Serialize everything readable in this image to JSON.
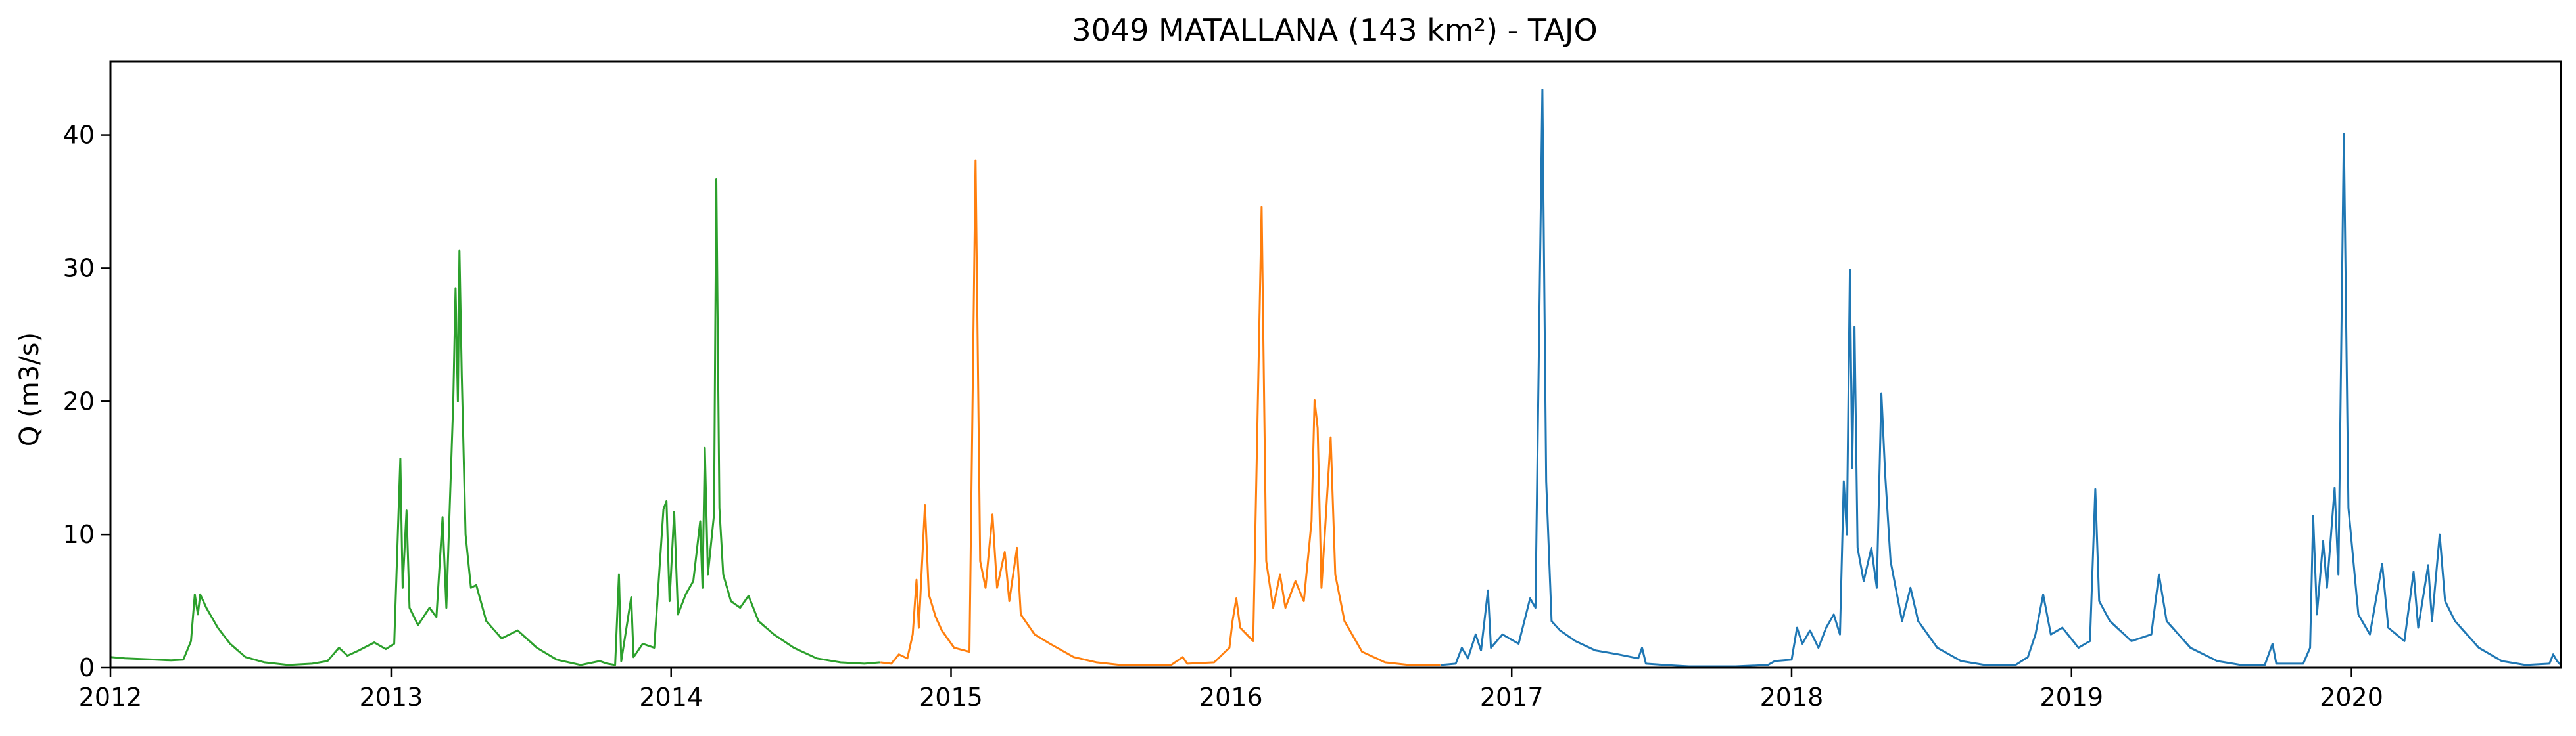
{
  "chart_data": {
    "type": "line",
    "title": "3049 MATALLANA (143 km²) - TAJO",
    "xlabel": "",
    "ylabel": "Q (m3/s)",
    "xlim": [
      "2012-01-01",
      "2020-09-30"
    ],
    "ylim": [
      0,
      45.5
    ],
    "x_ticks": [
      "2012",
      "2013",
      "2014",
      "2015",
      "2016",
      "2017",
      "2018",
      "2019",
      "2020"
    ],
    "y_ticks": [
      "0",
      "10",
      "20",
      "30",
      "40"
    ],
    "grid": false,
    "legend": "none",
    "series": [
      {
        "color": "#2ca02c",
        "points": [
          [
            "2012-01-01",
            0.8
          ],
          [
            "2012-01-20",
            0.7
          ],
          [
            "2012-02-10",
            0.65
          ],
          [
            "2012-03-01",
            0.6
          ],
          [
            "2012-03-20",
            0.55
          ],
          [
            "2012-04-05",
            0.6
          ],
          [
            "2012-04-15",
            2.0
          ],
          [
            "2012-04-20",
            5.5
          ],
          [
            "2012-04-24",
            4.0
          ],
          [
            "2012-04-27",
            5.5
          ],
          [
            "2012-05-05",
            4.5
          ],
          [
            "2012-05-20",
            3.0
          ],
          [
            "2012-06-05",
            1.8
          ],
          [
            "2012-06-25",
            0.8
          ],
          [
            "2012-07-20",
            0.4
          ],
          [
            "2012-08-20",
            0.2
          ],
          [
            "2012-09-20",
            0.3
          ],
          [
            "2012-10-10",
            0.5
          ],
          [
            "2012-10-25",
            1.5
          ],
          [
            "2012-11-05",
            0.9
          ],
          [
            "2012-11-20",
            1.3
          ],
          [
            "2012-12-10",
            1.9
          ],
          [
            "2012-12-25",
            1.4
          ],
          [
            "2013-01-05",
            1.8
          ],
          [
            "2013-01-13",
            15.7
          ],
          [
            "2013-01-16",
            6.0
          ],
          [
            "2013-01-21",
            11.8
          ],
          [
            "2013-01-25",
            4.5
          ],
          [
            "2013-02-05",
            3.2
          ],
          [
            "2013-02-20",
            4.5
          ],
          [
            "2013-03-01",
            3.8
          ],
          [
            "2013-03-09",
            11.3
          ],
          [
            "2013-03-14",
            4.5
          ],
          [
            "2013-03-23",
            20.0
          ],
          [
            "2013-03-26",
            28.5
          ],
          [
            "2013-03-29",
            20.0
          ],
          [
            "2013-03-31",
            31.3
          ],
          [
            "2013-04-03",
            22.0
          ],
          [
            "2013-04-08",
            10.0
          ],
          [
            "2013-04-15",
            6.0
          ],
          [
            "2013-04-22",
            6.2
          ],
          [
            "2013-05-05",
            3.5
          ],
          [
            "2013-05-25",
            2.2
          ],
          [
            "2013-06-15",
            2.8
          ],
          [
            "2013-07-10",
            1.5
          ],
          [
            "2013-08-05",
            0.6
          ],
          [
            "2013-09-05",
            0.2
          ],
          [
            "2013-09-30",
            0.5
          ],
          [
            "2013-10-10",
            0.3
          ],
          [
            "2013-10-20",
            0.2
          ],
          [
            "2013-10-25",
            7.0
          ],
          [
            "2013-10-28",
            0.5
          ],
          [
            "2013-11-10",
            5.3
          ],
          [
            "2013-11-13",
            0.8
          ],
          [
            "2013-11-25",
            1.8
          ],
          [
            "2013-12-10",
            1.5
          ],
          [
            "2013-12-22",
            11.9
          ],
          [
            "2013-12-26",
            12.5
          ],
          [
            "2013-12-30",
            5.0
          ],
          [
            "2014-01-05",
            11.7
          ],
          [
            "2014-01-10",
            4.0
          ],
          [
            "2014-01-20",
            5.5
          ],
          [
            "2014-01-30",
            6.5
          ],
          [
            "2014-02-08",
            11.0
          ],
          [
            "2014-02-11",
            6.0
          ],
          [
            "2014-02-14",
            16.5
          ],
          [
            "2014-02-18",
            7.0
          ],
          [
            "2014-02-26",
            11.5
          ],
          [
            "2014-03-01",
            36.7
          ],
          [
            "2014-03-05",
            12.0
          ],
          [
            "2014-03-10",
            7.0
          ],
          [
            "2014-03-20",
            5.0
          ],
          [
            "2014-04-01",
            4.5
          ],
          [
            "2014-04-12",
            5.4
          ],
          [
            "2014-04-25",
            3.5
          ],
          [
            "2014-05-15",
            2.5
          ],
          [
            "2014-06-10",
            1.5
          ],
          [
            "2014-07-10",
            0.7
          ],
          [
            "2014-08-10",
            0.4
          ],
          [
            "2014-09-10",
            0.3
          ],
          [
            "2014-09-30",
            0.4
          ]
        ]
      },
      {
        "color": "#ff7f0e",
        "points": [
          [
            "2014-10-01",
            0.4
          ],
          [
            "2014-10-15",
            0.3
          ],
          [
            "2014-10-25",
            1.0
          ],
          [
            "2014-11-05",
            0.7
          ],
          [
            "2014-11-12",
            2.5
          ],
          [
            "2014-11-17",
            6.6
          ],
          [
            "2014-11-20",
            3.0
          ],
          [
            "2014-11-28",
            12.2
          ],
          [
            "2014-12-03",
            5.5
          ],
          [
            "2014-12-12",
            3.8
          ],
          [
            "2014-12-20",
            2.8
          ],
          [
            "2015-01-05",
            1.5
          ],
          [
            "2015-01-25",
            1.2
          ],
          [
            "2015-02-02",
            38.1
          ],
          [
            "2015-02-08",
            8.0
          ],
          [
            "2015-02-15",
            6.0
          ],
          [
            "2015-02-24",
            11.5
          ],
          [
            "2015-03-02",
            6.0
          ],
          [
            "2015-03-12",
            8.7
          ],
          [
            "2015-03-18",
            5.0
          ],
          [
            "2015-03-28",
            9.0
          ],
          [
            "2015-04-02",
            4.0
          ],
          [
            "2015-04-20",
            2.5
          ],
          [
            "2015-05-10",
            1.8
          ],
          [
            "2015-06-10",
            0.8
          ],
          [
            "2015-07-10",
            0.4
          ],
          [
            "2015-08-10",
            0.2
          ],
          [
            "2015-09-10",
            0.2
          ],
          [
            "2015-10-15",
            0.2
          ],
          [
            "2015-10-30",
            0.8
          ],
          [
            "2015-11-05",
            0.3
          ],
          [
            "2015-12-10",
            0.4
          ],
          [
            "2015-12-30",
            1.5
          ],
          [
            "2016-01-03",
            3.5
          ],
          [
            "2016-01-08",
            5.2
          ],
          [
            "2016-01-13",
            3.0
          ],
          [
            "2016-01-30",
            2.0
          ],
          [
            "2016-02-10",
            34.6
          ],
          [
            "2016-02-16",
            8.0
          ],
          [
            "2016-02-25",
            4.5
          ],
          [
            "2016-03-05",
            7.0
          ],
          [
            "2016-03-12",
            4.5
          ],
          [
            "2016-03-25",
            6.5
          ],
          [
            "2016-04-05",
            5.0
          ],
          [
            "2016-04-15",
            11.0
          ],
          [
            "2016-04-19",
            20.1
          ],
          [
            "2016-04-23",
            18.0
          ],
          [
            "2016-04-28",
            6.0
          ],
          [
            "2016-05-10",
            17.3
          ],
          [
            "2016-05-16",
            7.0
          ],
          [
            "2016-05-28",
            3.5
          ],
          [
            "2016-06-20",
            1.2
          ],
          [
            "2016-07-20",
            0.4
          ],
          [
            "2016-08-20",
            0.2
          ],
          [
            "2016-09-30",
            0.2
          ]
        ]
      },
      {
        "color": "#1f77b4",
        "points": [
          [
            "2016-10-01",
            0.2
          ],
          [
            "2016-10-20",
            0.3
          ],
          [
            "2016-10-28",
            1.5
          ],
          [
            "2016-11-05",
            0.7
          ],
          [
            "2016-11-15",
            2.5
          ],
          [
            "2016-11-22",
            1.3
          ],
          [
            "2016-12-01",
            5.8
          ],
          [
            "2016-12-05",
            1.5
          ],
          [
            "2016-12-20",
            2.5
          ],
          [
            "2017-01-10",
            1.8
          ],
          [
            "2017-01-25",
            5.2
          ],
          [
            "2017-02-01",
            4.5
          ],
          [
            "2017-02-10",
            43.4
          ],
          [
            "2017-02-15",
            14.0
          ],
          [
            "2017-02-22",
            3.5
          ],
          [
            "2017-03-05",
            2.8
          ],
          [
            "2017-03-25",
            2.0
          ],
          [
            "2017-04-20",
            1.3
          ],
          [
            "2017-05-20",
            1.0
          ],
          [
            "2017-06-15",
            0.7
          ],
          [
            "2017-06-20",
            1.5
          ],
          [
            "2017-06-25",
            0.3
          ],
          [
            "2017-07-20",
            0.2
          ],
          [
            "2017-08-20",
            0.1
          ],
          [
            "2017-10-20",
            0.1
          ],
          [
            "2017-12-01",
            0.2
          ],
          [
            "2017-12-10",
            0.5
          ],
          [
            "2018-01-01",
            0.6
          ],
          [
            "2018-01-08",
            3.0
          ],
          [
            "2018-01-15",
            1.8
          ],
          [
            "2018-01-25",
            2.8
          ],
          [
            "2018-02-05",
            1.5
          ],
          [
            "2018-02-15",
            3.0
          ],
          [
            "2018-02-25",
            4.0
          ],
          [
            "2018-03-05",
            2.5
          ],
          [
            "2018-03-10",
            14.0
          ],
          [
            "2018-03-14",
            10.0
          ],
          [
            "2018-03-18",
            29.9
          ],
          [
            "2018-03-21",
            15.0
          ],
          [
            "2018-03-24",
            25.6
          ],
          [
            "2018-03-28",
            9.0
          ],
          [
            "2018-04-05",
            6.5
          ],
          [
            "2018-04-15",
            9.0
          ],
          [
            "2018-04-22",
            6.0
          ],
          [
            "2018-04-28",
            20.6
          ],
          [
            "2018-05-03",
            14.5
          ],
          [
            "2018-05-10",
            8.0
          ],
          [
            "2018-05-25",
            3.5
          ],
          [
            "2018-06-05",
            6.0
          ],
          [
            "2018-06-15",
            3.5
          ],
          [
            "2018-07-10",
            1.5
          ],
          [
            "2018-08-10",
            0.5
          ],
          [
            "2018-09-10",
            0.2
          ],
          [
            "2018-10-20",
            0.2
          ],
          [
            "2018-11-05",
            0.8
          ],
          [
            "2018-11-15",
            2.5
          ],
          [
            "2018-11-25",
            5.5
          ],
          [
            "2018-12-05",
            2.5
          ],
          [
            "2018-12-20",
            3.0
          ],
          [
            "2019-01-10",
            1.5
          ],
          [
            "2019-01-25",
            2.0
          ],
          [
            "2019-02-01",
            13.4
          ],
          [
            "2019-02-06",
            5.0
          ],
          [
            "2019-02-20",
            3.5
          ],
          [
            "2019-03-20",
            2.0
          ],
          [
            "2019-04-15",
            2.5
          ],
          [
            "2019-04-25",
            7.0
          ],
          [
            "2019-05-05",
            3.5
          ],
          [
            "2019-06-05",
            1.5
          ],
          [
            "2019-07-10",
            0.5
          ],
          [
            "2019-08-10",
            0.2
          ],
          [
            "2019-09-10",
            0.2
          ],
          [
            "2019-09-20",
            1.8
          ],
          [
            "2019-09-25",
            0.3
          ],
          [
            "2019-10-30",
            0.3
          ],
          [
            "2019-11-08",
            1.5
          ],
          [
            "2019-11-12",
            11.4
          ],
          [
            "2019-11-17",
            4.0
          ],
          [
            "2019-11-25",
            9.5
          ],
          [
            "2019-11-30",
            6.0
          ],
          [
            "2019-12-10",
            13.5
          ],
          [
            "2019-12-15",
            7.0
          ],
          [
            "2019-12-22",
            40.1
          ],
          [
            "2019-12-28",
            12.0
          ],
          [
            "2020-01-10",
            4.0
          ],
          [
            "2020-01-25",
            2.5
          ],
          [
            "2020-02-10",
            7.8
          ],
          [
            "2020-02-18",
            3.0
          ],
          [
            "2020-03-10",
            2.0
          ],
          [
            "2020-03-22",
            7.2
          ],
          [
            "2020-03-28",
            3.0
          ],
          [
            "2020-04-10",
            7.7
          ],
          [
            "2020-04-15",
            3.5
          ],
          [
            "2020-04-25",
            10.0
          ],
          [
            "2020-05-02",
            5.0
          ],
          [
            "2020-05-15",
            3.5
          ],
          [
            "2020-06-15",
            1.5
          ],
          [
            "2020-07-15",
            0.5
          ],
          [
            "2020-08-15",
            0.2
          ],
          [
            "2020-09-15",
            0.3
          ],
          [
            "2020-09-20",
            1.0
          ],
          [
            "2020-09-25",
            0.5
          ],
          [
            "2020-09-30",
            0.2
          ]
        ]
      }
    ]
  }
}
